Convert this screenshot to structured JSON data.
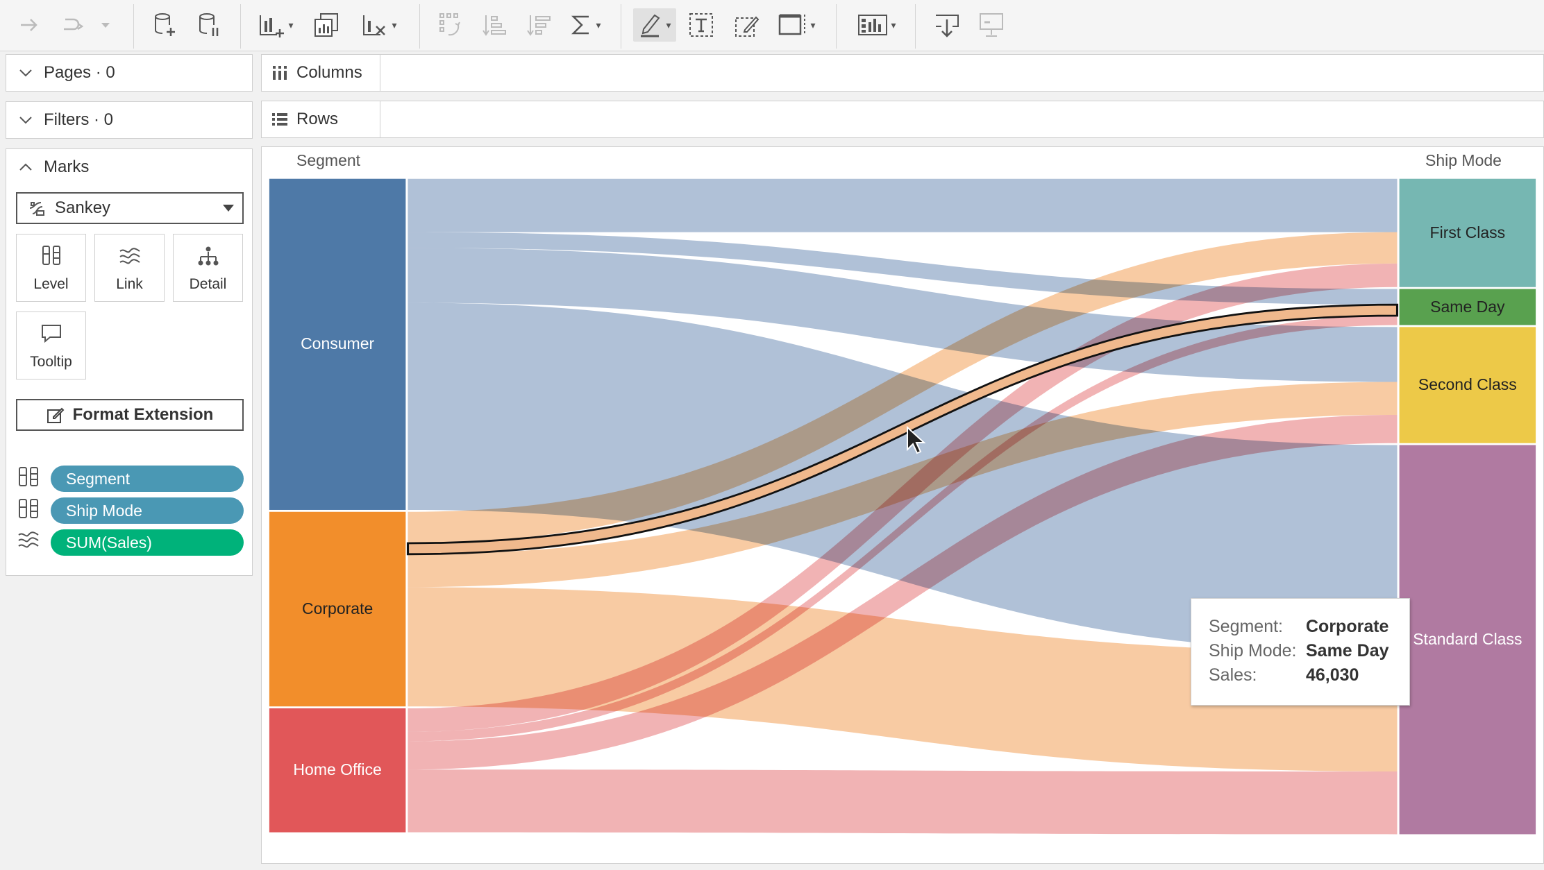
{
  "toolbar": {
    "buttons": [
      {
        "name": "redo-arrow-icon"
      },
      {
        "name": "undo-redo-icon"
      },
      {
        "name": "new-data-source-icon"
      },
      {
        "name": "pause-data-updates-icon"
      },
      {
        "name": "new-worksheet-icon"
      },
      {
        "name": "duplicate-sheet-icon"
      },
      {
        "name": "clear-sheet-icon"
      },
      {
        "name": "swap-rows-columns-icon"
      },
      {
        "name": "sort-ascending-icon"
      },
      {
        "name": "sort-descending-icon"
      },
      {
        "name": "totals-icon"
      },
      {
        "name": "highlight-icon"
      },
      {
        "name": "text-label-icon"
      },
      {
        "name": "annotate-icon"
      },
      {
        "name": "fit-view-icon"
      },
      {
        "name": "show-me-icon"
      },
      {
        "name": "download-icon"
      },
      {
        "name": "presentation-mode-icon"
      }
    ]
  },
  "panes": {
    "pages": {
      "label": "Pages · 0"
    },
    "filters": {
      "label": "Filters · 0"
    },
    "marks": {
      "label": "Marks",
      "mark_type": "Sankey",
      "cards": [
        {
          "label": "Level",
          "icon": "level-icon"
        },
        {
          "label": "Link",
          "icon": "link-icon"
        },
        {
          "label": "Detail",
          "icon": "detail-icon"
        },
        {
          "label": "Tooltip",
          "icon": "tooltip-icon"
        }
      ],
      "format_button": "Format Extension",
      "pills": [
        {
          "label": "Segment",
          "icon": "level-icon",
          "color": "#4a98b4"
        },
        {
          "label": "Ship Mode",
          "icon": "level-icon",
          "color": "#4a98b4"
        },
        {
          "label": "SUM(Sales)",
          "icon": "link-icon",
          "color": "#00b27a"
        }
      ]
    }
  },
  "shelves": {
    "columns": "Columns",
    "rows": "Rows"
  },
  "chart_data": {
    "type": "sankey",
    "left_title": "Segment",
    "right_title": "Ship Mode",
    "sources": [
      {
        "label": "Consumer",
        "color": "#4e79a7",
        "link_color": "#a7bad3"
      },
      {
        "label": "Corporate",
        "color": "#f28e2b",
        "link_color": "#f7c599"
      },
      {
        "label": "Home Office",
        "color": "#e15759",
        "link_color": "#f0abac"
      }
    ],
    "targets": [
      {
        "label": "First Class",
        "color": "#76b7b2"
      },
      {
        "label": "Same Day",
        "color": "#59a14f"
      },
      {
        "label": "Second Class",
        "color": "#edc948"
      },
      {
        "label": "Standard Class",
        "color": "#b07aa1"
      }
    ],
    "flows": [
      {
        "source": "Consumer",
        "target": "First Class",
        "value": 34
      },
      {
        "source": "Consumer",
        "target": "Same Day",
        "value": 10
      },
      {
        "source": "Consumer",
        "target": "Second Class",
        "value": 35
      },
      {
        "source": "Consumer",
        "target": "Standard Class",
        "value": 132
      },
      {
        "source": "Corporate",
        "target": "First Class",
        "value": 20
      },
      {
        "source": "Corporate",
        "target": "Same Day",
        "value": 7
      },
      {
        "source": "Corporate",
        "target": "Second Class",
        "value": 21
      },
      {
        "source": "Corporate",
        "target": "Standard Class",
        "value": 76
      },
      {
        "source": "Home Office",
        "target": "First Class",
        "value": 15
      },
      {
        "source": "Home Office",
        "target": "Same Day",
        "value": 6
      },
      {
        "source": "Home Office",
        "target": "Second Class",
        "value": 18
      },
      {
        "source": "Home Office",
        "target": "Standard Class",
        "value": 40
      }
    ],
    "highlighted": {
      "source": "Corporate",
      "target": "Same Day"
    }
  },
  "tooltip": {
    "rows": [
      {
        "key": "Segment:",
        "value": "Corporate"
      },
      {
        "key": "Ship Mode:",
        "value": "Same Day"
      },
      {
        "key": "Sales:",
        "value": "46,030"
      }
    ]
  }
}
